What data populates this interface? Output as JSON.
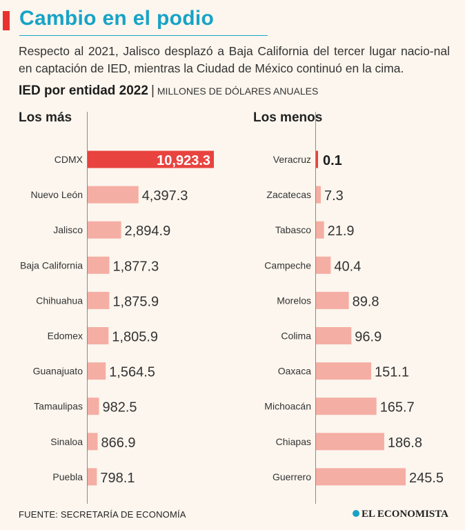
{
  "header": {
    "title": "Cambio en el podio",
    "intro": "Respecto al 2021, Jalisco desplazó a Baja California del tercer lugar nacio-nal en captación de IED, mientras la Ciudad de México continuó en la cima.",
    "subtitle": "IED por entidad 2022",
    "separator": "|",
    "unit": "MILLONES DE DÓLARES ANUALES"
  },
  "columns": {
    "left_heading": "Los más",
    "right_heading": "Los menos"
  },
  "colors": {
    "highlight_bar": "#e8433f",
    "bar": "#f5aea4",
    "title": "#17a3c6",
    "accent": "#e8322f"
  },
  "chart_data": [
    {
      "type": "bar",
      "orientation": "horizontal",
      "title": "Los más",
      "categories": [
        "CDMX",
        "Nuevo León",
        "Jalisco",
        "Baja California",
        "Chihuahua",
        "Edomex",
        "Guanajuato",
        "Tamaulipas",
        "Sinaloa",
        "Puebla"
      ],
      "values": [
        10923.3,
        4397.3,
        2894.9,
        1877.3,
        1875.9,
        1805.9,
        1564.5,
        982.5,
        866.9,
        798.1
      ],
      "value_labels": [
        "10,923.3",
        "4,397.3",
        "2,894.9",
        "1,877.3",
        "1,875.9",
        "1,805.9",
        "1,564.5",
        "982.5",
        "866.9",
        "798.1"
      ],
      "highlight_index": 0
    },
    {
      "type": "bar",
      "orientation": "horizontal",
      "title": "Los menos",
      "categories": [
        "Veracruz",
        "Zacatecas",
        "Tabasco",
        "Campeche",
        "Morelos",
        "Colima",
        "Oaxaca",
        "Michoacán",
        "Chiapas",
        "Guerrero"
      ],
      "values": [
        0.1,
        7.3,
        21.9,
        40.4,
        89.8,
        96.9,
        151.1,
        165.7,
        186.8,
        245.5
      ],
      "value_labels": [
        "0.1",
        "7.3",
        "21.9",
        "40.4",
        "89.8",
        "96.9",
        "151.1",
        "165.7",
        "186.8",
        "245.5"
      ],
      "highlight_index": 0
    }
  ],
  "footer": {
    "source": "FUENTE: SECRETARÍA DE ECONOMÍA",
    "brand": "EL ECONOMISTA",
    "brand_icon": "dot-logo-icon"
  }
}
